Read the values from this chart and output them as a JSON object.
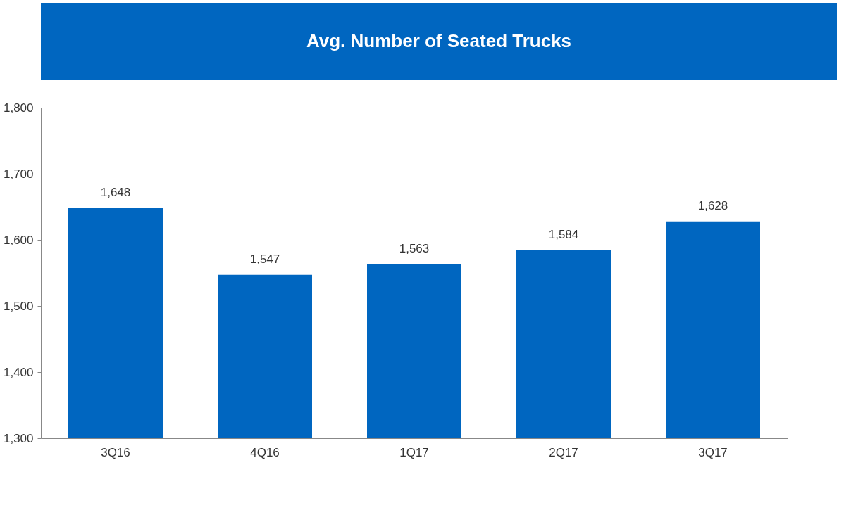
{
  "chart_data": {
    "type": "bar",
    "title": "Avg. Number of Seated Trucks",
    "categories": [
      "3Q16",
      "4Q16",
      "1Q17",
      "2Q17",
      "3Q17"
    ],
    "values": [
      1648,
      1547,
      1563,
      1584,
      1628
    ],
    "color": "#0066c0",
    "value_labels": [
      "1,648",
      "1,547",
      "1,563",
      "1,584",
      "1,628"
    ],
    "ylim": [
      1300,
      1800
    ],
    "yticks": [
      {
        "value": 1300,
        "label": "1,300"
      },
      {
        "value": 1400,
        "label": "1,400"
      },
      {
        "value": 1500,
        "label": "1,500"
      },
      {
        "value": 1600,
        "label": "1,600"
      },
      {
        "value": 1700,
        "label": "1,700"
      },
      {
        "value": 1800,
        "label": "1,800"
      }
    ],
    "grid": false
  }
}
